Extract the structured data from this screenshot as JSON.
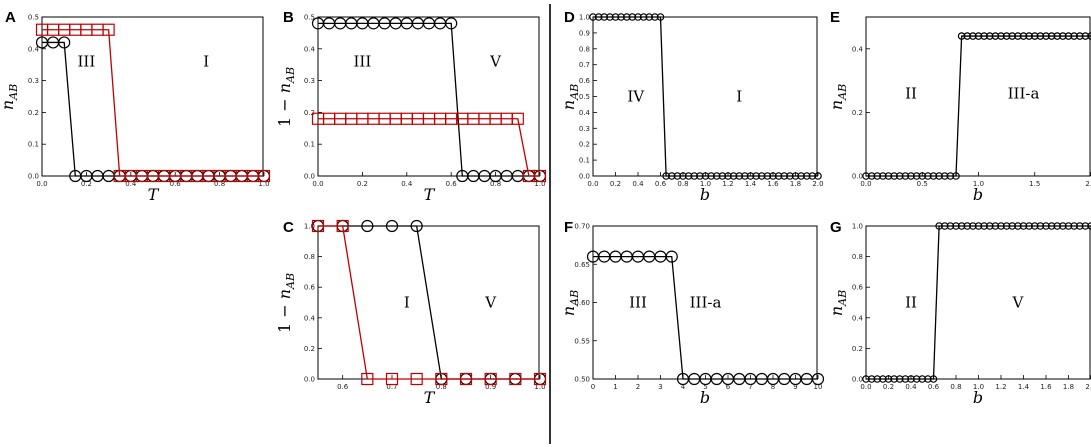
{
  "colors": {
    "black": "#000000",
    "red": "#c00000",
    "divider": "#000000"
  },
  "chart_data": [
    {
      "id": "A",
      "type": "line",
      "panel_label": "A",
      "xlabel": "T",
      "ylabel_parts": [
        "n",
        "AB"
      ],
      "xlim": [
        0,
        1
      ],
      "ylim": [
        0,
        0.5
      ],
      "xticks": [
        0.0,
        0.2,
        0.4,
        0.6,
        0.8,
        1.0
      ],
      "xtick_labels": [
        "0.0",
        "0.2",
        "0.4",
        "0.6",
        "0.8",
        "1.0"
      ],
      "yticks": [
        0.0,
        0.1,
        0.2,
        0.3,
        0.4,
        0.5
      ],
      "ytick_labels": [
        "0.0",
        "0.1",
        "0.2",
        "0.3",
        "0.4",
        "0.5"
      ],
      "regions": [
        {
          "text": "III",
          "x": 0.2,
          "y": 0.36
        },
        {
          "text": "I",
          "x": 0.74,
          "y": 0.36
        }
      ],
      "series": [
        {
          "color": "black",
          "marker": "circle",
          "x": [
            0.0,
            0.05,
            0.1,
            0.15,
            0.2,
            0.25,
            0.3,
            0.35,
            0.4,
            0.45,
            0.5,
            0.55,
            0.6,
            0.65,
            0.7,
            0.75,
            0.8,
            0.85,
            0.9,
            0.95,
            1.0
          ],
          "y": [
            0.42,
            0.42,
            0.42,
            0,
            0,
            0,
            0,
            0,
            0,
            0,
            0,
            0,
            0,
            0,
            0,
            0,
            0,
            0,
            0,
            0,
            0
          ]
        },
        {
          "color": "red",
          "marker": "square",
          "x": [
            0.0,
            0.05,
            0.1,
            0.15,
            0.2,
            0.25,
            0.3,
            0.35,
            0.4,
            0.45,
            0.5,
            0.55,
            0.6,
            0.65,
            0.7,
            0.75,
            0.8,
            0.85,
            0.9,
            0.95,
            1.0
          ],
          "y": [
            0.46,
            0.46,
            0.46,
            0.46,
            0.46,
            0.46,
            0.46,
            0,
            0,
            0,
            0,
            0,
            0,
            0,
            0,
            0,
            0,
            0,
            0,
            0,
            0
          ]
        }
      ]
    },
    {
      "id": "B",
      "type": "line",
      "panel_label": "B",
      "xlabel": "T",
      "ylabel_parts": [
        "1 − ",
        "n",
        "AB"
      ],
      "xlim": [
        0,
        1
      ],
      "ylim": [
        0,
        0.5
      ],
      "xticks": [
        0.0,
        0.2,
        0.4,
        0.6,
        0.8,
        1.0
      ],
      "xtick_labels": [
        "0.0",
        "0.2",
        "0.4",
        "0.6",
        "0.8",
        "1.0"
      ],
      "yticks": [
        0.0,
        0.1,
        0.2,
        0.3,
        0.4,
        0.5
      ],
      "ytick_labels": [
        "0.0",
        "0.1",
        "0.2",
        "0.3",
        "0.4",
        "0.5"
      ],
      "regions": [
        {
          "text": "III",
          "x": 0.2,
          "y": 0.36
        },
        {
          "text": "V",
          "x": 0.8,
          "y": 0.36
        }
      ],
      "series": [
        {
          "color": "black",
          "marker": "circle",
          "x": [
            0.0,
            0.05,
            0.1,
            0.15,
            0.2,
            0.25,
            0.3,
            0.35,
            0.4,
            0.45,
            0.5,
            0.55,
            0.6,
            0.65,
            0.7,
            0.75,
            0.8,
            0.85,
            0.9,
            0.95,
            1.0
          ],
          "y": [
            0.48,
            0.48,
            0.48,
            0.48,
            0.48,
            0.48,
            0.48,
            0.48,
            0.48,
            0.48,
            0.48,
            0.48,
            0.48,
            0,
            0,
            0,
            0,
            0,
            0,
            0,
            0
          ]
        },
        {
          "color": "red",
          "marker": "square",
          "x": [
            0.0,
            0.05,
            0.1,
            0.15,
            0.2,
            0.25,
            0.3,
            0.35,
            0.4,
            0.45,
            0.5,
            0.55,
            0.6,
            0.65,
            0.7,
            0.75,
            0.8,
            0.85,
            0.9,
            0.95,
            1.0
          ],
          "y": [
            0.18,
            0.18,
            0.18,
            0.18,
            0.18,
            0.18,
            0.18,
            0.18,
            0.18,
            0.18,
            0.18,
            0.18,
            0.18,
            0.18,
            0.18,
            0.18,
            0.18,
            0.18,
            0.18,
            0,
            0
          ]
        }
      ]
    },
    {
      "id": "C",
      "type": "line",
      "panel_label": "C",
      "xlabel": "T",
      "ylabel_parts": [
        "1 − ",
        "n",
        "AB"
      ],
      "xlim": [
        0.55,
        1.0
      ],
      "ylim": [
        0,
        1.0
      ],
      "xticks": [
        0.6,
        0.7,
        0.8,
        0.9,
        1.0
      ],
      "xtick_labels": [
        "0.6",
        "0.7",
        "0.8",
        "0.9",
        "1.0"
      ],
      "yticks": [
        0.0,
        0.2,
        0.4,
        0.6,
        0.8,
        1.0
      ],
      "ytick_labels": [
        "0.0",
        "0.2",
        "0.4",
        "0.6",
        "0.8",
        "1.0"
      ],
      "regions": [
        {
          "text": "I",
          "x": 0.73,
          "y": 0.5
        },
        {
          "text": "V",
          "x": 0.9,
          "y": 0.5
        }
      ],
      "series": [
        {
          "color": "black",
          "marker": "circle",
          "x": [
            0.55,
            0.6,
            0.65,
            0.7,
            0.75,
            0.8,
            0.85,
            0.9,
            0.95,
            1.0
          ],
          "y": [
            1.0,
            1.0,
            1.0,
            1.0,
            1.0,
            0,
            0,
            0,
            0,
            0
          ]
        },
        {
          "color": "red",
          "marker": "square",
          "x": [
            0.55,
            0.6,
            0.65,
            0.7,
            0.75,
            0.8,
            0.85,
            0.9,
            0.95,
            1.0
          ],
          "y": [
            1.0,
            1.0,
            0,
            0,
            0,
            0,
            0,
            0,
            0,
            0
          ]
        }
      ]
    },
    {
      "id": "D",
      "type": "line",
      "panel_label": "D",
      "xlabel": "b",
      "ylabel_parts": [
        "n",
        "AB"
      ],
      "xlim": [
        0,
        2.0
      ],
      "ylim": [
        0,
        1.0
      ],
      "xticks": [
        0.0,
        0.2,
        0.4,
        0.6,
        0.8,
        1.0,
        1.2,
        1.4,
        1.6,
        1.8,
        2.0
      ],
      "xtick_labels": [
        "0.0",
        "0.2",
        "0.4",
        "0.6",
        "0.8",
        "1.0",
        "1.2",
        "1.4",
        "1.6",
        "1.8",
        "2.0"
      ],
      "yticks": [
        0.0,
        0.1,
        0.2,
        0.3,
        0.4,
        0.5,
        0.6,
        0.7,
        0.8,
        0.9,
        1.0
      ],
      "ytick_labels": [
        "0.0",
        "0.1",
        "0.2",
        "0.3",
        "0.4",
        "0.5",
        "0.6",
        "0.7",
        "0.8",
        "0.9",
        "1.0"
      ],
      "regions": [
        {
          "text": "IV",
          "x": 0.38,
          "y": 0.5
        },
        {
          "text": "I",
          "x": 1.3,
          "y": 0.5
        }
      ],
      "series": [
        {
          "color": "black",
          "marker": "circle",
          "x": [
            0.0,
            0.05,
            0.1,
            0.15,
            0.2,
            0.25,
            0.3,
            0.35,
            0.4,
            0.45,
            0.5,
            0.55,
            0.6,
            0.65,
            0.7,
            0.75,
            0.8,
            0.85,
            0.9,
            0.95,
            1.0,
            1.05,
            1.1,
            1.15,
            1.2,
            1.25,
            1.3,
            1.35,
            1.4,
            1.45,
            1.5,
            1.55,
            1.6,
            1.65,
            1.7,
            1.75,
            1.8,
            1.85,
            1.9,
            1.95,
            2.0
          ],
          "y": [
            1,
            1,
            1,
            1,
            1,
            1,
            1,
            1,
            1,
            1,
            1,
            1,
            1,
            0,
            0,
            0,
            0,
            0,
            0,
            0,
            0,
            0,
            0,
            0,
            0,
            0,
            0,
            0,
            0,
            0,
            0,
            0,
            0,
            0,
            0,
            0,
            0,
            0,
            0,
            0,
            0
          ]
        }
      ]
    },
    {
      "id": "E",
      "type": "line",
      "panel_label": "E",
      "xlabel": "b",
      "ylabel_parts": [
        "n",
        "AB"
      ],
      "xlim": [
        0,
        2.0
      ],
      "ylim": [
        0,
        0.5
      ],
      "xticks": [
        0.0,
        0.5,
        1.0,
        1.5,
        2.0
      ],
      "xtick_labels": [
        "0.0",
        "0.5",
        "1.0",
        "1.5",
        "2.0"
      ],
      "yticks": [
        0.0,
        0.2,
        0.4
      ],
      "ytick_labels": [
        "0.0",
        "0.2",
        "0.4"
      ],
      "regions": [
        {
          "text": "II",
          "x": 0.4,
          "y": 0.26
        },
        {
          "text": "III-a",
          "x": 1.4,
          "y": 0.26
        }
      ],
      "series": [
        {
          "color": "black",
          "marker": "circle",
          "x": [
            0.0,
            0.05,
            0.1,
            0.15,
            0.2,
            0.25,
            0.3,
            0.35,
            0.4,
            0.45,
            0.5,
            0.55,
            0.6,
            0.65,
            0.7,
            0.75,
            0.8,
            0.85,
            0.9,
            0.95,
            1.0,
            1.05,
            1.1,
            1.15,
            1.2,
            1.25,
            1.3,
            1.35,
            1.4,
            1.45,
            1.5,
            1.55,
            1.6,
            1.65,
            1.7,
            1.75,
            1.8,
            1.85,
            1.9,
            1.95,
            2.0
          ],
          "y": [
            0,
            0,
            0,
            0,
            0,
            0,
            0,
            0,
            0,
            0,
            0,
            0,
            0,
            0,
            0,
            0,
            0,
            0.44,
            0.44,
            0.44,
            0.44,
            0.44,
            0.44,
            0.44,
            0.44,
            0.44,
            0.44,
            0.44,
            0.44,
            0.44,
            0.44,
            0.44,
            0.44,
            0.44,
            0.44,
            0.44,
            0.44,
            0.44,
            0.44,
            0.44,
            0.44
          ]
        }
      ]
    },
    {
      "id": "F",
      "type": "line",
      "panel_label": "F",
      "xlabel": "b",
      "ylabel_parts": [
        "n",
        "AB"
      ],
      "xlim": [
        0,
        10
      ],
      "ylim": [
        0.5,
        0.7
      ],
      "xticks": [
        0,
        1,
        2,
        3,
        4,
        5,
        6,
        7,
        8,
        9,
        10
      ],
      "xtick_labels": [
        "0",
        "1",
        "2",
        "3",
        "4",
        "5",
        "6",
        "7",
        "8",
        "9",
        "10"
      ],
      "yticks": [
        0.5,
        0.55,
        0.6,
        0.65,
        0.7
      ],
      "ytick_labels": [
        "0.50",
        "0.55",
        "0.60",
        "0.65",
        "0.70"
      ],
      "regions": [
        {
          "text": "III",
          "x": 2.0,
          "y": 0.6
        },
        {
          "text": "III-a",
          "x": 5.0,
          "y": 0.6
        }
      ],
      "series": [
        {
          "color": "black",
          "marker": "circle",
          "x": [
            0,
            0.5,
            1,
            1.5,
            2,
            2.5,
            3,
            3.5,
            4,
            4.5,
            5,
            5.5,
            6,
            6.5,
            7,
            7.5,
            8,
            8.5,
            9,
            9.5,
            10
          ],
          "y": [
            0.66,
            0.66,
            0.66,
            0.66,
            0.66,
            0.66,
            0.66,
            0.66,
            0.5,
            0.5,
            0.5,
            0.5,
            0.5,
            0.5,
            0.5,
            0.5,
            0.5,
            0.5,
            0.5,
            0.5,
            0.5
          ]
        }
      ]
    },
    {
      "id": "G",
      "type": "line",
      "panel_label": "G",
      "xlabel": "b",
      "ylabel_parts": [
        "n",
        "AB"
      ],
      "xlim": [
        0,
        2.0
      ],
      "ylim": [
        0,
        1.0
      ],
      "xticks": [
        0.0,
        0.2,
        0.4,
        0.6,
        0.8,
        1.0,
        1.2,
        1.4,
        1.6,
        1.8,
        2.0
      ],
      "xtick_labels": [
        "0.0",
        "0.2",
        "0.4",
        "0.6",
        "0.8",
        "1.0",
        "1.2",
        "1.4",
        "1.6",
        "1.8",
        "2.0"
      ],
      "yticks": [
        0.0,
        0.2,
        0.4,
        0.6,
        0.8,
        1.0
      ],
      "ytick_labels": [
        "0.0",
        "0.2",
        "0.4",
        "0.6",
        "0.8",
        "1.0"
      ],
      "regions": [
        {
          "text": "II",
          "x": 0.4,
          "y": 0.5
        },
        {
          "text": "V",
          "x": 1.35,
          "y": 0.5
        }
      ],
      "series": [
        {
          "color": "black",
          "marker": "circle",
          "x": [
            0.0,
            0.05,
            0.1,
            0.15,
            0.2,
            0.25,
            0.3,
            0.35,
            0.4,
            0.45,
            0.5,
            0.55,
            0.6,
            0.65,
            0.7,
            0.75,
            0.8,
            0.85,
            0.9,
            0.95,
            1.0,
            1.05,
            1.1,
            1.15,
            1.2,
            1.25,
            1.3,
            1.35,
            1.4,
            1.45,
            1.5,
            1.55,
            1.6,
            1.65,
            1.7,
            1.75,
            1.8,
            1.85,
            1.9,
            1.95,
            2.0
          ],
          "y": [
            0,
            0,
            0,
            0,
            0,
            0,
            0,
            0,
            0,
            0,
            0,
            0,
            0,
            1,
            1,
            1,
            1,
            1,
            1,
            1,
            1,
            1,
            1,
            1,
            1,
            1,
            1,
            1,
            1,
            1,
            1,
            1,
            1,
            1,
            1,
            1,
            1,
            1,
            1,
            1,
            1
          ]
        }
      ]
    }
  ]
}
